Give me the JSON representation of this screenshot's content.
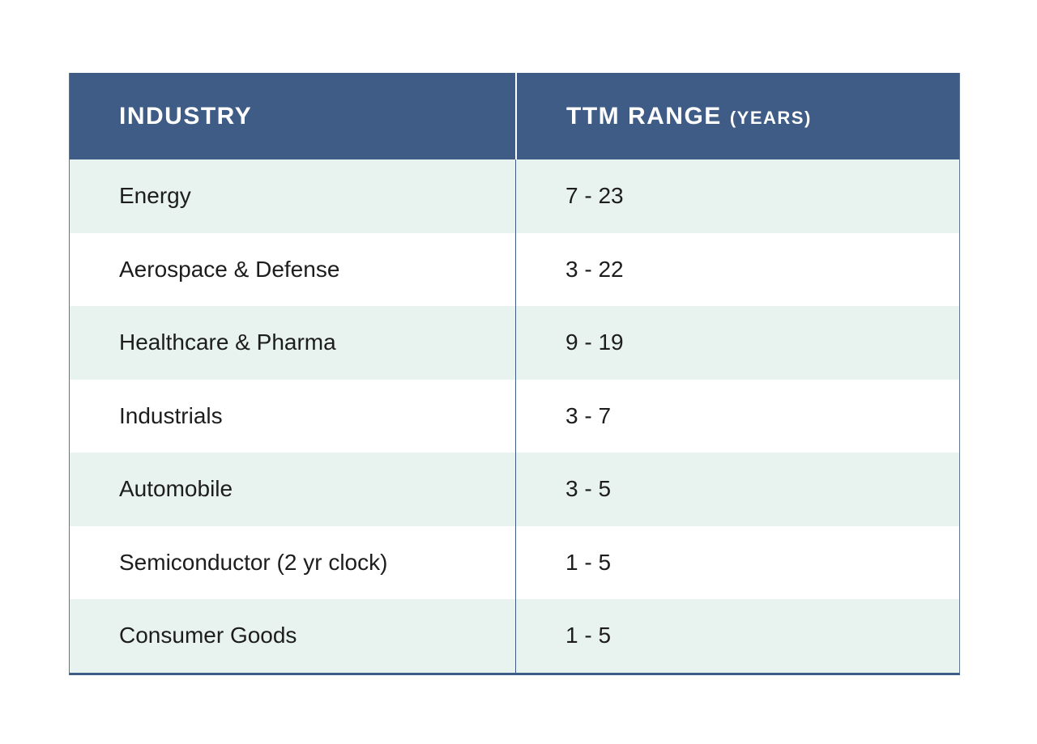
{
  "chart_data": {
    "type": "table",
    "columns": [
      "INDUSTRY",
      "TTM RANGE (YEARS)"
    ],
    "rows": [
      [
        "Energy",
        "7 - 23"
      ],
      [
        "Aerospace & Defense",
        "3 - 22"
      ],
      [
        "Healthcare & Pharma",
        "9 - 19"
      ],
      [
        "Industrials",
        "3 - 7"
      ],
      [
        "Automobile",
        "3 - 5"
      ],
      [
        "Semiconductor (2 yr clock)",
        "1 - 5"
      ],
      [
        "Consumer Goods",
        "1 - 5"
      ]
    ]
  },
  "table": {
    "header": {
      "industry_label": "INDUSTRY",
      "range_label": "TTM RANGE",
      "range_sublabel": "(YEARS)"
    },
    "rows": [
      {
        "industry": "Energy",
        "ttm_range": "7 - 23"
      },
      {
        "industry": "Aerospace & Defense",
        "ttm_range": "3 - 22"
      },
      {
        "industry": "Healthcare & Pharma",
        "ttm_range": "9 - 19"
      },
      {
        "industry": "Industrials",
        "ttm_range": "3 - 7"
      },
      {
        "industry": "Automobile",
        "ttm_range": "3 - 5"
      },
      {
        "industry": "Semiconductor (2 yr clock)",
        "ttm_range": "1 - 5"
      },
      {
        "industry": "Consumer Goods",
        "ttm_range": "1 - 5"
      }
    ],
    "colors": {
      "header_bg": "#3e5c85",
      "header_text": "#ffffff",
      "row_alt_bg": "#e8f2ef",
      "row_bg": "#ffffff",
      "border": "#3e5c85",
      "body_text": "#1d1d1d"
    }
  }
}
